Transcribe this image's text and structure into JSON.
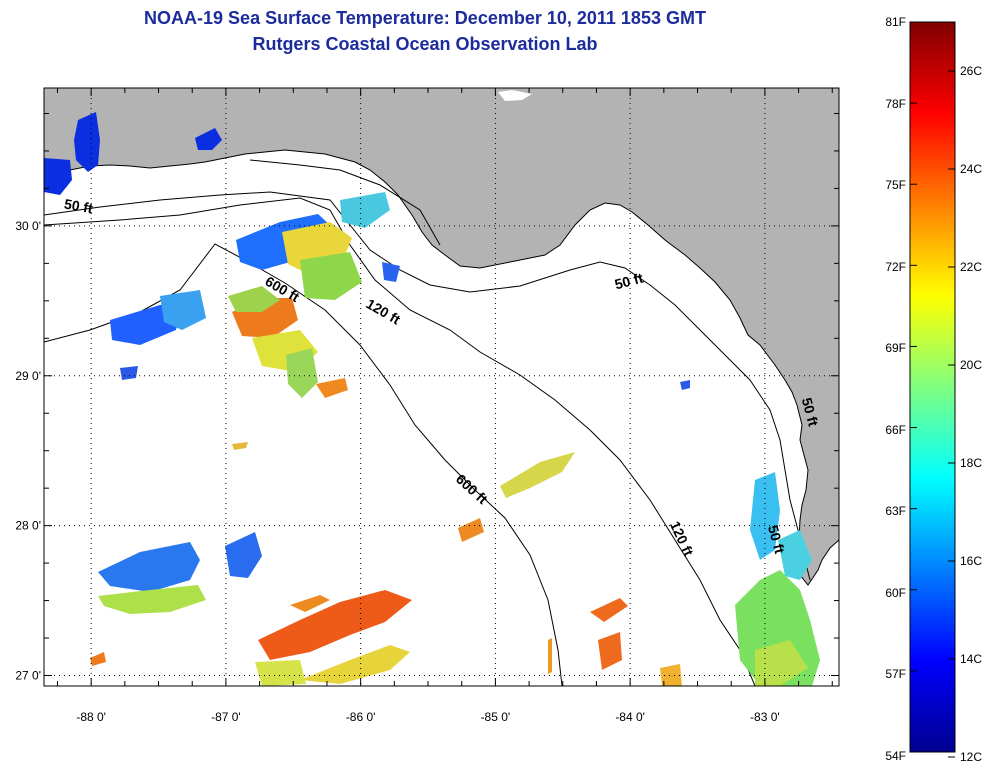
{
  "header": {
    "title_line1": "NOAA-19 Sea Surface Temperature:  December 10, 2011 1853 GMT",
    "title_line2": "Rutgers Coastal Ocean Observation Lab"
  },
  "map": {
    "lon_range": [
      -88.35,
      -82.45
    ],
    "lat_range": [
      26.93,
      30.92
    ],
    "lon_ticks": [
      {
        "value": -88,
        "label": "-88 0'"
      },
      {
        "value": -87,
        "label": "-87 0'"
      },
      {
        "value": -86,
        "label": "-86 0'"
      },
      {
        "value": -85,
        "label": "-85 0'"
      },
      {
        "value": -84,
        "label": "-84 0'"
      },
      {
        "value": -83,
        "label": "-83 0'"
      }
    ],
    "lat_ticks": [
      {
        "value": 27,
        "label": "27 0'"
      },
      {
        "value": 28,
        "label": "28 0'"
      },
      {
        "value": 29,
        "label": "29 0'"
      },
      {
        "value": 30,
        "label": "30 0'"
      }
    ],
    "grid": true,
    "land_color": "#b3b3b3",
    "ocean_color": "#ffffff",
    "contour_labels": [
      {
        "text": "50 ft",
        "lon": -88.1,
        "lat": 30.1,
        "angle": 10
      },
      {
        "text": "600 ft",
        "lon": -86.6,
        "lat": 29.55,
        "angle": 30
      },
      {
        "text": "120 ft",
        "lon": -85.85,
        "lat": 29.4,
        "angle": 30
      },
      {
        "text": "50 ft",
        "lon": -84.0,
        "lat": 29.6,
        "angle": -15
      },
      {
        "text": "600 ft",
        "lon": -85.2,
        "lat": 28.22,
        "angle": 42
      },
      {
        "text": "120 ft",
        "lon": -83.65,
        "lat": 27.9,
        "angle": 65
      },
      {
        "text": "50 ft",
        "lon": -82.95,
        "lat": 27.9,
        "angle": 75
      },
      {
        "text": "50 ft",
        "lon": -82.7,
        "lat": 28.75,
        "angle": 75
      }
    ]
  },
  "colorbar": {
    "fahrenheit_labels": [
      "81F",
      "78F",
      "75F",
      "72F",
      "69F",
      "66F",
      "63F",
      "60F",
      "57F",
      "54F"
    ],
    "celsius_labels": [
      "26C",
      "24C",
      "22C",
      "20C",
      "18C",
      "16C",
      "14C",
      "12C"
    ],
    "colormap": "jet",
    "range_celsius": [
      12,
      27.2
    ]
  }
}
